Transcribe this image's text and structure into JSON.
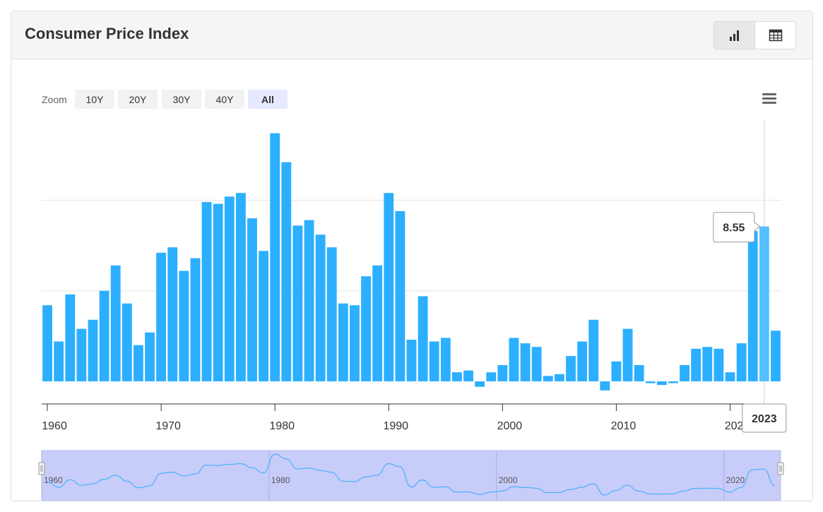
{
  "header": {
    "title": "Consumer Price Index"
  },
  "view_toggle": {
    "chart_icon": "bar-chart-icon",
    "table_icon": "table-icon",
    "active": "chart"
  },
  "zoom": {
    "label": "Zoom",
    "buttons": [
      {
        "label": "10Y",
        "selected": false
      },
      {
        "label": "20Y",
        "selected": false
      },
      {
        "label": "30Y",
        "selected": false
      },
      {
        "label": "40Y",
        "selected": false
      },
      {
        "label": "All",
        "selected": true
      }
    ]
  },
  "menu": {
    "icon": "hamburger-menu-icon"
  },
  "tooltip": {
    "value": "8.55",
    "x_label": "2023"
  },
  "navigator": {
    "labels": [
      "1960",
      "1980",
      "2000",
      "2020"
    ]
  },
  "colors": {
    "bar": "#2caffe",
    "bar_hover": "#54c0ff",
    "navigator_fill": "#c8ccf8",
    "navigator_line": "#2caffe"
  },
  "chart_data": {
    "type": "bar",
    "title": "Consumer Price Index",
    "xlabel": "",
    "ylabel": "",
    "x_tick_labels": [
      "1960",
      "1970",
      "1980",
      "1990",
      "2000",
      "2010",
      "2020"
    ],
    "y_tick_labels": [],
    "ylim": [
      -1,
      14.5
    ],
    "grid": true,
    "legend": "none",
    "highlighted": {
      "year": 2023,
      "value": 8.55
    },
    "categories": [
      1960,
      1961,
      1962,
      1963,
      1964,
      1965,
      1966,
      1967,
      1968,
      1969,
      1970,
      1971,
      1972,
      1973,
      1974,
      1975,
      1976,
      1977,
      1978,
      1979,
      1980,
      1981,
      1982,
      1983,
      1984,
      1985,
      1986,
      1987,
      1988,
      1989,
      1990,
      1991,
      1992,
      1993,
      1994,
      1995,
      1996,
      1997,
      1998,
      1999,
      2000,
      2001,
      2002,
      2003,
      2004,
      2005,
      2006,
      2007,
      2008,
      2009,
      2010,
      2011,
      2012,
      2013,
      2014,
      2015,
      2016,
      2017,
      2018,
      2019,
      2020,
      2021,
      2022,
      2023,
      2024
    ],
    "values": [
      4.2,
      2.2,
      4.8,
      2.9,
      3.4,
      5.0,
      6.4,
      4.3,
      2.0,
      2.7,
      7.1,
      7.4,
      6.1,
      6.8,
      9.9,
      9.8,
      10.2,
      10.4,
      9.0,
      7.2,
      13.7,
      12.1,
      8.6,
      8.9,
      8.1,
      7.4,
      4.3,
      4.2,
      5.8,
      6.4,
      10.4,
      9.4,
      2.3,
      4.7,
      2.2,
      2.4,
      0.5,
      0.6,
      -0.3,
      0.5,
      0.9,
      2.4,
      2.1,
      1.9,
      0.3,
      0.4,
      1.4,
      2.2,
      3.4,
      -0.5,
      1.1,
      2.9,
      0.9,
      -0.1,
      -0.2,
      -0.1,
      0.9,
      1.8,
      1.9,
      1.8,
      0.5,
      2.1,
      8.3,
      8.55,
      2.8
    ]
  }
}
